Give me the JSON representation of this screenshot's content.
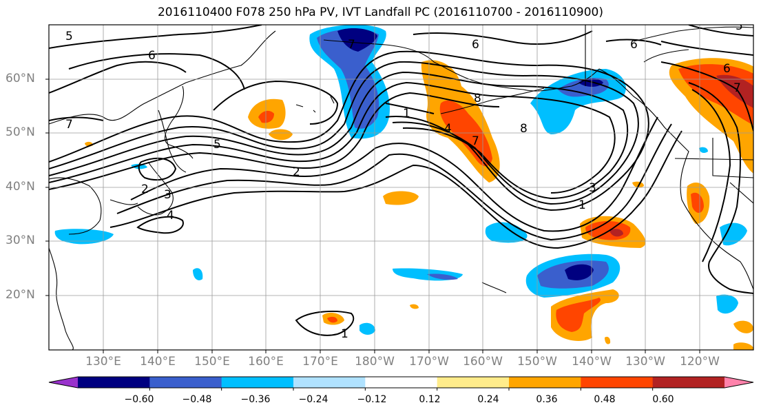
{
  "title": "2016110400 F078 250 hPa PV, IVT Landfall PC (2016110700 - 2016110900)",
  "lat_labels": [
    "60°N",
    "50°N",
    "40°N",
    "30°N",
    "20°N"
  ],
  "lon_labels": [
    "130°E",
    "140°E",
    "150°E",
    "160°E",
    "170°E",
    "180°W",
    "170°W",
    "160°W",
    "150°W",
    "140°W",
    "130°W",
    "120°W"
  ],
  "colorbar": {
    "colors": [
      "#9932cc",
      "#000080",
      "#3a5fcd",
      "#00bfff",
      "#b0e2ff",
      "#ffffff",
      "#ffec8b",
      "#ffa500",
      "#ff4500",
      "#b22222",
      "#ff82ab"
    ],
    "tick_labels": [
      "−0.60",
      "−0.48",
      "−0.36",
      "−0.24",
      "−0.12",
      "0.12",
      "0.24",
      "0.36",
      "0.48",
      "0.60"
    ]
  },
  "contour_labels": [
    "5",
    "6",
    "7",
    "5",
    "7",
    "6",
    "6",
    "7",
    "8",
    "5",
    "2",
    "2",
    "3",
    "4",
    "1",
    "3",
    "1",
    "8",
    "7",
    "6",
    "4",
    "1"
  ]
}
